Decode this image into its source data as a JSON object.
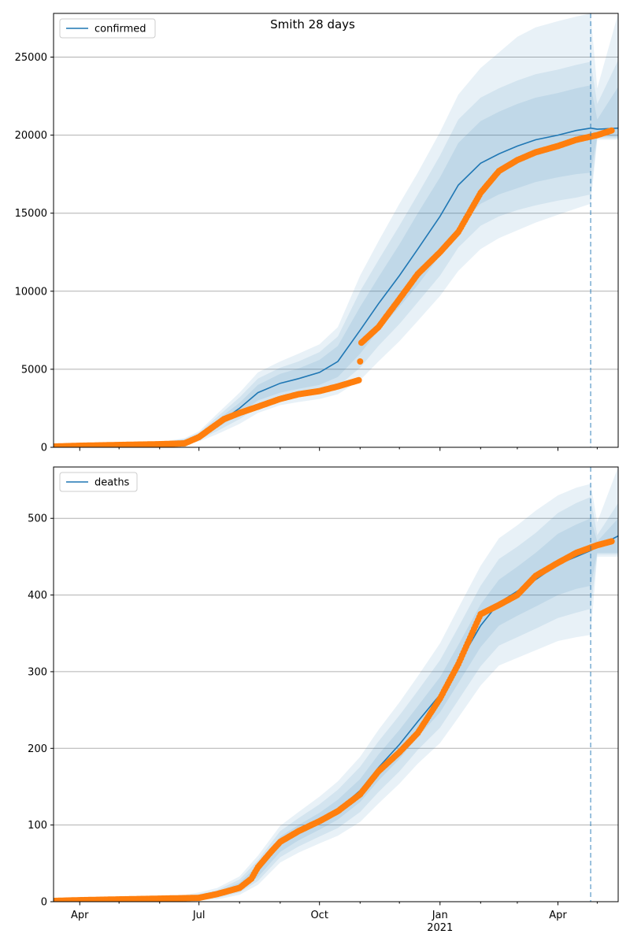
{
  "figure": {
    "title": "Smith 28 days",
    "colors": {
      "model": "#1f77b4",
      "observed": "#ff7f0e",
      "band": "#1f77b4",
      "grid": "#b0b0b0",
      "forecast_line": "#1f77b4"
    }
  },
  "chart_data": [
    {
      "type": "line",
      "legend": "confirmed",
      "legend_position": "top-left",
      "grid": "horizontal",
      "x_domain": [
        "2020-03-12",
        "2021-05-17"
      ],
      "ylim": [
        0,
        27800
      ],
      "yticks": [
        0,
        5000,
        10000,
        15000,
        20000,
        25000
      ],
      "forecast_start": "2021-04-26",
      "model": {
        "name": "confirmed",
        "x": [
          "2020-03-12",
          "2020-04-01",
          "2020-05-01",
          "2020-06-01",
          "2020-06-20",
          "2020-07-01",
          "2020-07-15",
          "2020-08-01",
          "2020-08-15",
          "2020-09-01",
          "2020-09-15",
          "2020-10-01",
          "2020-10-15",
          "2020-11-01",
          "2020-11-15",
          "2020-12-01",
          "2020-12-15",
          "2021-01-01",
          "2021-01-15",
          "2021-02-01",
          "2021-02-15",
          "2021-03-01",
          "2021-03-15",
          "2021-04-01",
          "2021-04-15",
          "2021-04-26",
          "2021-05-01",
          "2021-05-17"
        ],
        "y": [
          0,
          50,
          150,
          250,
          400,
          700,
          1500,
          2500,
          3500,
          4100,
          4400,
          4800,
          5500,
          7500,
          9200,
          11000,
          12700,
          14800,
          16800,
          18200,
          18800,
          19300,
          19700,
          20000,
          20300,
          20450,
          20380,
          20450
        ],
        "band_inner": [
          [
            0,
            0
          ],
          [
            40,
            60
          ],
          [
            130,
            170
          ],
          [
            210,
            290
          ],
          [
            320,
            480
          ],
          [
            560,
            840
          ],
          [
            1250,
            1750
          ],
          [
            2150,
            2850
          ],
          [
            3000,
            4000
          ],
          [
            3500,
            4700
          ],
          [
            3750,
            5050
          ],
          [
            4000,
            5600
          ],
          [
            4500,
            6500
          ],
          [
            6000,
            9000
          ],
          [
            7500,
            10900
          ],
          [
            9000,
            13000
          ],
          [
            10400,
            15000
          ],
          [
            12300,
            17300
          ],
          [
            14200,
            19500
          ],
          [
            15600,
            20900
          ],
          [
            16200,
            21500
          ],
          [
            16600,
            22000
          ],
          [
            17000,
            22400
          ],
          [
            17300,
            22700
          ],
          [
            17500,
            23000
          ],
          [
            17600,
            23200
          ],
          [
            19900,
            21000
          ],
          [
            19900,
            23100
          ]
        ],
        "band_mid": [
          [
            0,
            0
          ],
          [
            30,
            70
          ],
          [
            110,
            190
          ],
          [
            180,
            320
          ],
          [
            270,
            530
          ],
          [
            470,
            930
          ],
          [
            1050,
            1950
          ],
          [
            1800,
            3200
          ],
          [
            2600,
            4400
          ],
          [
            3100,
            5100
          ],
          [
            3300,
            5500
          ],
          [
            3500,
            6100
          ],
          [
            3900,
            7100
          ],
          [
            5100,
            10000
          ],
          [
            6500,
            12000
          ],
          [
            7900,
            14200
          ],
          [
            9300,
            16200
          ],
          [
            11000,
            18700
          ],
          [
            12800,
            21000
          ],
          [
            14200,
            22400
          ],
          [
            14800,
            23000
          ],
          [
            15200,
            23500
          ],
          [
            15500,
            23900
          ],
          [
            15800,
            24200
          ],
          [
            16000,
            24500
          ],
          [
            16200,
            24700
          ],
          [
            19800,
            22000
          ],
          [
            19800,
            24800
          ]
        ],
        "band_outer": [
          [
            0,
            0
          ],
          [
            20,
            80
          ],
          [
            90,
            210
          ],
          [
            150,
            350
          ],
          [
            220,
            580
          ],
          [
            380,
            1020
          ],
          [
            850,
            2150
          ],
          [
            1500,
            3500
          ],
          [
            2200,
            4800
          ],
          [
            2700,
            5500
          ],
          [
            2900,
            6000
          ],
          [
            3100,
            6600
          ],
          [
            3400,
            7700
          ],
          [
            4300,
            11000
          ],
          [
            5500,
            13200
          ],
          [
            6800,
            15600
          ],
          [
            8100,
            17600
          ],
          [
            9700,
            20200
          ],
          [
            11300,
            22600
          ],
          [
            12700,
            24300
          ],
          [
            13400,
            25300
          ],
          [
            13900,
            26300
          ],
          [
            14400,
            26900
          ],
          [
            14900,
            27300
          ],
          [
            15300,
            27600
          ],
          [
            15600,
            27800
          ],
          [
            19700,
            23000
          ],
          [
            19700,
            27800
          ]
        ]
      },
      "observed": {
        "name": "observed confirmed",
        "x": [
          "2020-03-12",
          "2020-04-01",
          "2020-05-01",
          "2020-06-01",
          "2020-06-20",
          "2020-07-01",
          "2020-07-10",
          "2020-07-20",
          "2020-08-01",
          "2020-08-15",
          "2020-09-01",
          "2020-09-15",
          "2020-10-01",
          "2020-10-15",
          "2020-10-31",
          "2020-11-02",
          "2020-11-15",
          "2020-12-01",
          "2020-12-15",
          "2021-01-01",
          "2021-01-15",
          "2021-02-01",
          "2021-02-15",
          "2021-03-01",
          "2021-03-15",
          "2021-04-01",
          "2021-04-15",
          "2021-05-01",
          "2021-05-12"
        ],
        "y": [
          50,
          100,
          150,
          200,
          250,
          650,
          1200,
          1800,
          2200,
          2600,
          3100,
          3400,
          3600,
          3900,
          4300,
          6700,
          7700,
          9500,
          11100,
          12500,
          13800,
          16300,
          17700,
          18400,
          18900,
          19300,
          19700,
          20000,
          20300
        ]
      }
    },
    {
      "type": "line",
      "legend": "deaths",
      "legend_position": "top-left",
      "grid": "horizontal",
      "x_domain": [
        "2020-03-12",
        "2021-05-17"
      ],
      "xticks": [
        {
          "date": "2020-04-01",
          "label": "Apr"
        },
        {
          "date": "2020-07-01",
          "label": "Jul"
        },
        {
          "date": "2020-10-01",
          "label": "Oct"
        },
        {
          "date": "2021-01-01",
          "label": "Jan",
          "sublabel": "2021"
        },
        {
          "date": "2021-04-01",
          "label": "Apr"
        }
      ],
      "ylim": [
        0,
        567
      ],
      "yticks": [
        0,
        100,
        200,
        300,
        400,
        500
      ],
      "forecast_start": "2021-04-26",
      "model": {
        "name": "deaths",
        "x": [
          "2020-03-12",
          "2020-04-01",
          "2020-05-01",
          "2020-06-01",
          "2020-06-20",
          "2020-07-01",
          "2020-07-15",
          "2020-08-01",
          "2020-08-15",
          "2020-09-01",
          "2020-09-15",
          "2020-10-01",
          "2020-10-15",
          "2020-11-01",
          "2020-11-15",
          "2020-12-01",
          "2020-12-15",
          "2021-01-01",
          "2021-01-15",
          "2021-02-01",
          "2021-02-15",
          "2021-03-01",
          "2021-03-15",
          "2021-04-01",
          "2021-04-15",
          "2021-04-26",
          "2021-05-01",
          "2021-05-17"
        ],
        "y": [
          1,
          2,
          3,
          4,
          5,
          6,
          10,
          20,
          40,
          75,
          90,
          105,
          120,
          145,
          175,
          205,
          235,
          270,
          310,
          360,
          390,
          405,
          420,
          440,
          450,
          458,
          463,
          477
        ],
        "band_inner": [
          [
            0,
            2
          ],
          [
            1,
            3
          ],
          [
            2,
            4
          ],
          [
            3,
            5
          ],
          [
            4,
            6
          ],
          [
            4,
            8
          ],
          [
            7,
            13
          ],
          [
            15,
            25
          ],
          [
            32,
            48
          ],
          [
            65,
            85
          ],
          [
            80,
            100
          ],
          [
            94,
            116
          ],
          [
            107,
            133
          ],
          [
            130,
            160
          ],
          [
            158,
            192
          ],
          [
            186,
            224
          ],
          [
            215,
            255
          ],
          [
            247,
            293
          ],
          [
            285,
            335
          ],
          [
            332,
            388
          ],
          [
            360,
            420
          ],
          [
            373,
            437
          ],
          [
            385,
            455
          ],
          [
            400,
            480
          ],
          [
            408,
            492
          ],
          [
            412,
            500
          ],
          [
            455,
            470
          ],
          [
            455,
            500
          ]
        ],
        "band_mid": [
          [
            0,
            3
          ],
          [
            1,
            4
          ],
          [
            2,
            5
          ],
          [
            2,
            6
          ],
          [
            3,
            7
          ],
          [
            3,
            10
          ],
          [
            5,
            15
          ],
          [
            12,
            29
          ],
          [
            27,
            54
          ],
          [
            58,
            92
          ],
          [
            72,
            109
          ],
          [
            85,
            127
          ],
          [
            96,
            146
          ],
          [
            117,
            176
          ],
          [
            143,
            209
          ],
          [
            170,
            243
          ],
          [
            198,
            275
          ],
          [
            227,
            315
          ],
          [
            263,
            358
          ],
          [
            307,
            412
          ],
          [
            334,
            447
          ],
          [
            345,
            463
          ],
          [
            356,
            481
          ],
          [
            370,
            507
          ],
          [
            377,
            520
          ],
          [
            382,
            528
          ],
          [
            453,
            478
          ],
          [
            453,
            520
          ]
        ],
        "band_outer": [
          [
            0,
            4
          ],
          [
            0,
            5
          ],
          [
            1,
            6
          ],
          [
            1,
            8
          ],
          [
            2,
            9
          ],
          [
            2,
            12
          ],
          [
            3,
            18
          ],
          [
            9,
            33
          ],
          [
            22,
            60
          ],
          [
            51,
            99
          ],
          [
            64,
            117
          ],
          [
            76,
            137
          ],
          [
            86,
            157
          ],
          [
            104,
            189
          ],
          [
            128,
            224
          ],
          [
            154,
            260
          ],
          [
            180,
            294
          ],
          [
            207,
            337
          ],
          [
            240,
            383
          ],
          [
            282,
            438
          ],
          [
            308,
            474
          ],
          [
            318,
            491
          ],
          [
            328,
            510
          ],
          [
            340,
            530
          ],
          [
            345,
            540
          ],
          [
            348,
            545
          ],
          [
            450,
            495
          ],
          [
            450,
            567
          ]
        ]
      },
      "observed": {
        "name": "observed deaths",
        "x": [
          "2020-03-12",
          "2020-04-01",
          "2020-05-01",
          "2020-06-01",
          "2020-07-01",
          "2020-07-15",
          "2020-08-01",
          "2020-08-10",
          "2020-08-15",
          "2020-08-25",
          "2020-09-01",
          "2020-09-15",
          "2020-10-01",
          "2020-10-15",
          "2020-11-01",
          "2020-11-15",
          "2020-12-01",
          "2020-12-15",
          "2021-01-01",
          "2021-01-15",
          "2021-02-01",
          "2021-02-15",
          "2021-03-01",
          "2021-03-15",
          "2021-04-01",
          "2021-04-15",
          "2021-05-01",
          "2021-05-12"
        ],
        "y": [
          1,
          2,
          3,
          4,
          5,
          10,
          18,
          30,
          45,
          65,
          78,
          92,
          105,
          118,
          140,
          170,
          195,
          220,
          265,
          310,
          375,
          387,
          400,
          425,
          442,
          455,
          465,
          470
        ]
      }
    }
  ]
}
